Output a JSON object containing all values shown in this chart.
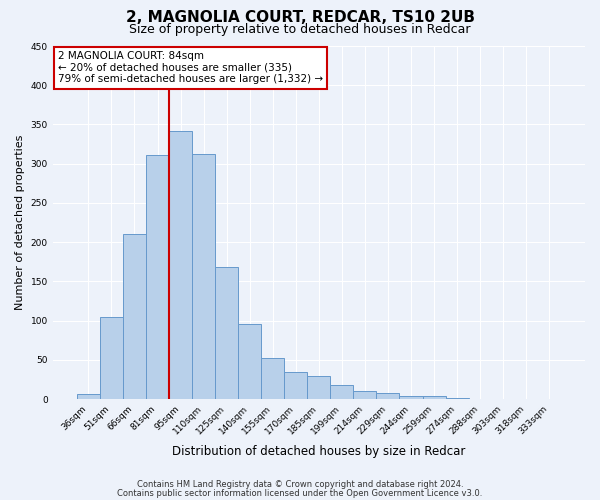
{
  "title": "2, MAGNOLIA COURT, REDCAR, TS10 2UB",
  "subtitle": "Size of property relative to detached houses in Redcar",
  "xlabel": "Distribution of detached houses by size in Redcar",
  "ylabel": "Number of detached properties",
  "bar_labels": [
    "36sqm",
    "51sqm",
    "66sqm",
    "81sqm",
    "95sqm",
    "110sqm",
    "125sqm",
    "140sqm",
    "155sqm",
    "170sqm",
    "185sqm",
    "199sqm",
    "214sqm",
    "229sqm",
    "244sqm",
    "259sqm",
    "274sqm",
    "288sqm",
    "303sqm",
    "318sqm",
    "333sqm"
  ],
  "bar_values": [
    7,
    105,
    210,
    311,
    342,
    312,
    168,
    96,
    53,
    35,
    29,
    18,
    11,
    8,
    4,
    4,
    1,
    0,
    0,
    0,
    0
  ],
  "bar_color": "#b8d0ea",
  "bar_edge_color": "#6699cc",
  "vline_color": "#cc0000",
  "annotation_title": "2 MAGNOLIA COURT: 84sqm",
  "annotation_line1": "← 20% of detached houses are smaller (335)",
  "annotation_line2": "79% of semi-detached houses are larger (1,332) →",
  "annotation_box_edge_color": "#cc0000",
  "ylim": [
    0,
    450
  ],
  "yticks": [
    0,
    50,
    100,
    150,
    200,
    250,
    300,
    350,
    400,
    450
  ],
  "footer1": "Contains HM Land Registry data © Crown copyright and database right 2024.",
  "footer2": "Contains public sector information licensed under the Open Government Licence v3.0.",
  "bg_color": "#edf2fa",
  "grid_color": "#ffffff",
  "title_fontsize": 11,
  "subtitle_fontsize": 9,
  "xlabel_fontsize": 8.5,
  "ylabel_fontsize": 8,
  "tick_fontsize": 6.5,
  "annot_fontsize": 7.5,
  "footer_fontsize": 6
}
